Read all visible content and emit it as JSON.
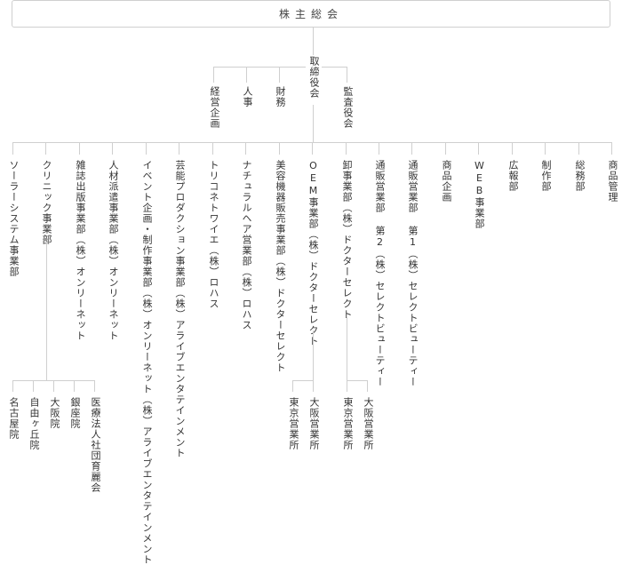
{
  "shareholders_meeting": "株主総会",
  "board": "取締役会",
  "auditors": "監査役会",
  "staff": [
    "経営企画",
    "人事",
    "財務"
  ],
  "divisions": [
    "ソーラーシステム事業部",
    "クリニック事業部",
    "雑誌出版事業部（株）オンリーネット",
    "人材派遣事業部（株）オンリーネット",
    "イベント企画・制作事業部（株）オンリーネット（株）アライブエンタテインメント",
    "芸能プロダクション事業部（株）アライブエンタテインメント",
    "トリコネトワイエ（株）ロハス",
    "ナチュラルヘア営業部（株）ロハス",
    "美容機器販売事業部（株）ドクターセレクト",
    "OEM事業部（株）ドクターセレクト",
    "卸事業部（株）ドクターセレクト",
    "通販営業部 第2（株）セレクトビューティー",
    "通販営業部 第1（株）セレクトビューティー",
    "商品企画",
    "WEB事業部",
    "広報部",
    "制作部",
    "総務部",
    "商品管理"
  ],
  "clinic_branches": [
    "名古屋院",
    "自由ヶ丘院",
    "大阪院",
    "銀座院",
    "医療法人社団育麗会"
  ],
  "oem_offices": [
    "東京営業所",
    "大阪営業所"
  ],
  "wholesale_offices": [
    "東京営業所",
    "大阪営業所"
  ],
  "colors": {
    "line": "#cfcfcf",
    "text": "#333333"
  }
}
